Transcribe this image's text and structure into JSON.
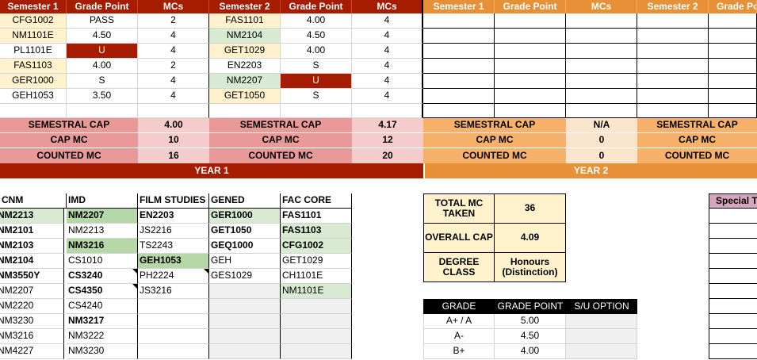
{
  "year1": {
    "sem1_header": "Semester 1",
    "gp_header": "Grade Point",
    "mc_header": "MCs",
    "sem2_header": "Semester 2",
    "gp2_header": "Grade Point",
    "mc2_header": "MCs",
    "sem1_rows": [
      {
        "mod": "CFG1002",
        "gp": "PASS",
        "mc": "2"
      },
      {
        "mod": "NM1101E",
        "gp": "4.50",
        "mc": "4"
      },
      {
        "mod": "PL1101E",
        "gp": "U",
        "mc": "4"
      },
      {
        "mod": "FAS1103",
        "gp": "4.00",
        "mc": "2"
      },
      {
        "mod": "GER1000",
        "gp": "S",
        "mc": "4"
      },
      {
        "mod": "GEH1053",
        "gp": "3.50",
        "mc": "4"
      }
    ],
    "sem2_rows": [
      {
        "mod": "FAS1101",
        "gp": "4.00",
        "mc": "4"
      },
      {
        "mod": "NM2104",
        "gp": "4.50",
        "mc": "4"
      },
      {
        "mod": "GET1029",
        "gp": "4.00",
        "mc": "4"
      },
      {
        "mod": "EN2203",
        "gp": "S",
        "mc": "4"
      },
      {
        "mod": "NM2207",
        "gp": "U",
        "mc": "4"
      },
      {
        "mod": "GET1050",
        "gp": "S",
        "mc": "4"
      }
    ],
    "cap_label": "SEMESTRAL CAP",
    "capmc_label": "CAP MC",
    "counted_label": "COUNTED MC",
    "sem1_cap": "4.00",
    "sem1_capmc": "10",
    "sem1_counted": "16",
    "sem2_cap": "4.17",
    "sem2_capmc": "12",
    "sem2_counted": "20",
    "bar_label": "YEAR 1"
  },
  "year2": {
    "sem1_header": "Semester 1",
    "gp_header": "Grade Point",
    "mc_header": "MCs",
    "sem2_header": "Semester 2",
    "gp2_header": "Grade Po",
    "cap_label": "SEMESTRAL CAP",
    "capmc_label": "CAP MC",
    "counted_label": "COUNTED MC",
    "sem1_cap": "N/A",
    "sem1_capmc": "0",
    "sem1_counted": "0",
    "bar_label": "YEAR 2"
  },
  "modules": {
    "headers": [
      "CNM",
      "IMD",
      "FILM STUDIES",
      "GENED",
      "FAC CORE"
    ],
    "rows": [
      [
        "NM2213",
        "NM2207",
        "EN2203",
        "GER1000",
        "FAS1101"
      ],
      [
        "NM2101",
        "NM2213",
        "JS2216",
        "GET1050",
        "FAS1103"
      ],
      [
        "NM2103",
        "NM3216",
        "TS2243",
        "GEQ1000",
        "CFG1002"
      ],
      [
        "NM2104",
        "CS1010",
        "GEH1053",
        "GEH",
        "GET1029"
      ],
      [
        "NM3550Y",
        "CS3240",
        "PH2224",
        "GES1029",
        "CH1101E"
      ],
      [
        "NM2207",
        "CS4350",
        "JS3216",
        "",
        "NM1101E"
      ],
      [
        "NM2220",
        "CS4240",
        "",
        "",
        ""
      ],
      [
        "NM3230",
        "NM3217",
        "",
        "",
        ""
      ],
      [
        "NM3216",
        "NM3222",
        "",
        "",
        ""
      ],
      [
        "NM4227",
        "NM3230",
        "",
        "",
        ""
      ]
    ]
  },
  "summary": {
    "total_label": "TOTAL MC TAKEN",
    "total_value": "36",
    "cap_label": "OVERALL CAP",
    "cap_value": "4.09",
    "degree_label": "DEGREE CLASS",
    "degree_value": "Honours (Distinction)"
  },
  "grades": {
    "headers": [
      "GRADE",
      "GRADE POINT",
      "S/U OPTION"
    ],
    "rows": [
      {
        "grade": "A+ / A",
        "point": "5.00"
      },
      {
        "grade": "A-",
        "point": "4.50"
      },
      {
        "grade": "B+",
        "point": "4.00"
      }
    ]
  },
  "special_header": "Special T",
  "colors": {
    "dark_red": "#a61c00",
    "orange": "#e69138",
    "cream": "#fff2cc",
    "green": "#d9ead3",
    "pink": "#ea9999"
  }
}
